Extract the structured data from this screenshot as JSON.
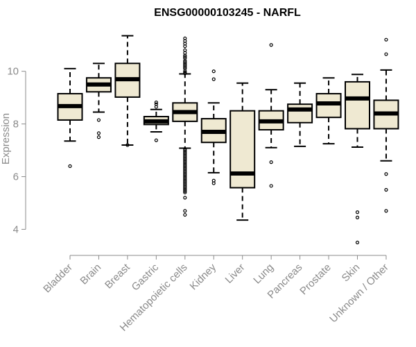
{
  "chart_data": {
    "type": "boxplot",
    "title": "ENSG00000103245 - NARFL",
    "ylabel": "Expression",
    "xlabel": "",
    "ylim": [
      3.3,
      11.6
    ],
    "yticks": [
      4,
      6,
      8,
      10
    ],
    "box_fill": "#efe9d2",
    "box_stroke": "#000000",
    "median_color": "#000000",
    "categories": [
      "Bladder",
      "Brain",
      "Breast",
      "Gastric",
      "Hematopoietic cells",
      "Kidney",
      "Liver",
      "Lung",
      "Pancreas",
      "Prostate",
      "Skin",
      "Unknown / Other"
    ],
    "boxes": [
      {
        "q1": 8.15,
        "median": 8.68,
        "q3": 9.15,
        "wlow": 7.35,
        "whigh": 10.1,
        "outliers": [
          6.4
        ]
      },
      {
        "q1": 9.22,
        "median": 9.5,
        "q3": 9.75,
        "wlow": 8.45,
        "whigh": 10.3,
        "outliers": [
          8.15,
          7.65,
          7.5
        ]
      },
      {
        "q1": 9.02,
        "median": 9.7,
        "q3": 10.3,
        "wlow": 7.2,
        "whigh": 11.35,
        "outliers": [
          7.2
        ]
      },
      {
        "q1": 7.98,
        "median": 8.1,
        "q3": 8.28,
        "wlow": 7.7,
        "whigh": 8.55,
        "outliers": [
          8.65,
          8.75,
          8.82,
          7.38
        ]
      },
      {
        "q1": 8.1,
        "median": 8.45,
        "q3": 8.8,
        "wlow": 7.08,
        "whigh": 9.9,
        "outliers": [
          11.25,
          11.15,
          11.05,
          10.95,
          10.8,
          10.7,
          10.6,
          10.55,
          10.5,
          10.4,
          10.35,
          10.3,
          10.25,
          10.2,
          10.15,
          10.1,
          10.0,
          9.95,
          9.92,
          7.05,
          7.0,
          6.95,
          6.9,
          6.85,
          6.8,
          6.75,
          6.7,
          6.65,
          6.6,
          6.55,
          6.5,
          6.45,
          6.4,
          6.35,
          6.3,
          6.25,
          6.2,
          6.15,
          6.1,
          6.05,
          6.0,
          5.95,
          5.9,
          5.85,
          5.8,
          5.75,
          5.7,
          5.65,
          5.6,
          5.55,
          5.5,
          5.45,
          5.4,
          5.2,
          4.7,
          4.55
        ]
      },
      {
        "q1": 7.3,
        "median": 7.7,
        "q3": 8.2,
        "wlow": 6.15,
        "whigh": 8.8,
        "outliers": [
          10.0,
          9.7,
          5.85,
          5.75
        ]
      },
      {
        "q1": 5.58,
        "median": 6.12,
        "q3": 8.5,
        "wlow": 4.35,
        "whigh": 9.55,
        "outliers": []
      },
      {
        "q1": 7.78,
        "median": 8.1,
        "q3": 8.5,
        "wlow": 7.1,
        "whigh": 9.3,
        "outliers": [
          11.0,
          6.55,
          5.65
        ]
      },
      {
        "q1": 8.05,
        "median": 8.55,
        "q3": 8.75,
        "wlow": 7.15,
        "whigh": 9.55,
        "outliers": []
      },
      {
        "q1": 8.25,
        "median": 8.78,
        "q3": 9.15,
        "wlow": 7.25,
        "whigh": 9.75,
        "outliers": []
      },
      {
        "q1": 7.82,
        "median": 8.97,
        "q3": 9.6,
        "wlow": 7.12,
        "whigh": 9.88,
        "outliers": [
          4.65,
          4.45,
          3.5
        ]
      },
      {
        "q1": 7.82,
        "median": 8.4,
        "q3": 8.9,
        "wlow": 6.6,
        "whigh": 10.05,
        "outliers": [
          11.2,
          10.65,
          6.1,
          5.5,
          4.7
        ]
      }
    ]
  }
}
